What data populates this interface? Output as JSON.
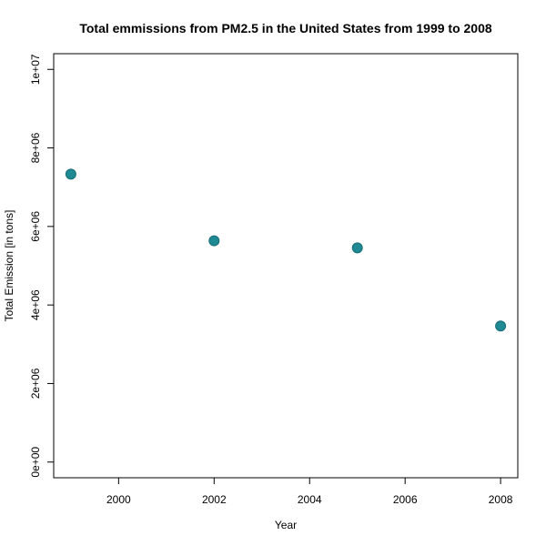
{
  "chart_data": {
    "type": "scatter",
    "title": "Total emmissions from PM2.5 in the United States from 1999 to 2008",
    "xlabel": "Year",
    "ylabel": "Total Emission [in tons]",
    "x": [
      1999,
      2002,
      2005,
      2008
    ],
    "y": [
      7332967,
      5635780,
      5454703,
      3464206
    ],
    "xlim": [
      1998.64,
      2008.36
    ],
    "ylim": [
      -400000,
      10400000
    ],
    "x_ticks": [
      2000,
      2002,
      2004,
      2006,
      2008
    ],
    "x_tick_labels": [
      "2000",
      "2002",
      "2004",
      "2006",
      "2008"
    ],
    "y_ticks": [
      0,
      2000000,
      4000000,
      6000000,
      8000000,
      10000000
    ],
    "y_tick_labels": [
      "0e+00",
      "2e+06",
      "4e+06",
      "6e+06",
      "8e+06",
      "1e+07"
    ],
    "grid": false,
    "point_color": "#1f8a94"
  }
}
